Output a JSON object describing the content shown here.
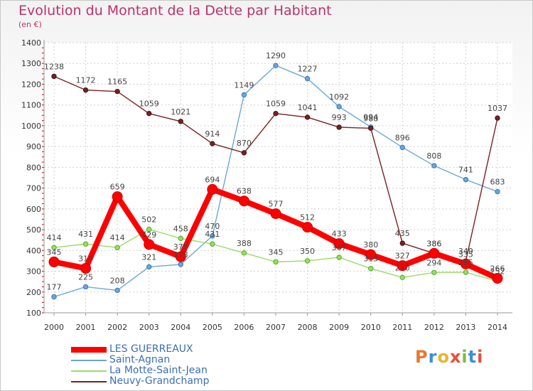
{
  "title": "Evolution du Montant de la Dette par Habitant",
  "subtitle": "(en €)",
  "logo": {
    "text": "Proxiti",
    "colors": [
      "#e8792e",
      "#3b8fd6",
      "#e8b52e",
      "#e84c3c",
      "#7bbf3a",
      "#3b8fd6",
      "#e84c3c"
    ]
  },
  "chart_data": {
    "type": "line",
    "x": [
      "2000",
      "2001",
      "2002",
      "2003",
      "2004",
      "2005",
      "2006",
      "2007",
      "2008",
      "2009",
      "2010",
      "2011",
      "2012",
      "2013",
      "2014"
    ],
    "ylim": [
      100,
      1400
    ],
    "yticks": [
      "100",
      "200",
      "300",
      "400",
      "500",
      "600",
      "700",
      "800",
      "900",
      "1000",
      "1100",
      "1200",
      "1300",
      "1400"
    ],
    "grid": true,
    "series": [
      {
        "name": "LES GUERREAUX",
        "color": "#ff0000",
        "values": [
          345,
          314,
          659,
          429,
          370,
          694,
          638,
          577,
          512,
          433,
          380,
          327,
          386,
          335,
          266
        ],
        "labels": [
          "345",
          "314",
          "659",
          "429",
          "370",
          "694",
          "638",
          "577",
          "512",
          "433",
          "380",
          "327",
          "386",
          "335",
          "266"
        ]
      },
      {
        "name": "Saint-Agnan",
        "color": "#6aa6d8",
        "values": [
          177,
          225,
          208,
          321,
          333,
          470,
          1149,
          1290,
          1227,
          1092,
          994,
          896,
          808,
          741,
          683
        ],
        "labels": [
          "177",
          "225",
          "208",
          "321",
          "333",
          "470",
          "1149",
          "1290",
          "1227",
          "1092",
          "994",
          "896",
          "808",
          "741",
          "683"
        ]
      },
      {
        "name": "La Motte-Saint-Jean",
        "color": "#99dd66",
        "values": [
          414,
          431,
          414,
          502,
          458,
          431,
          388,
          345,
          350,
          367,
          313,
          270,
          294,
          295,
          252
        ],
        "labels": [
          "414",
          "431",
          "414",
          "502",
          "458",
          "431",
          "388",
          "345",
          "350",
          "367",
          "313",
          "270",
          "294",
          "295",
          "252"
        ]
      },
      {
        "name": "Neuvy-Grandchamp",
        "color": "#772222",
        "values": [
          1238,
          1172,
          1165,
          1059,
          1021,
          914,
          870,
          1059,
          1041,
          993,
          988,
          435,
          386,
          349,
          1037
        ],
        "labels": [
          "1238",
          "1172",
          "1165",
          "1059",
          "1021",
          "914",
          "870",
          "1059",
          "1041",
          "993",
          "988",
          "435",
          "386",
          "349",
          "1037"
        ]
      }
    ]
  }
}
